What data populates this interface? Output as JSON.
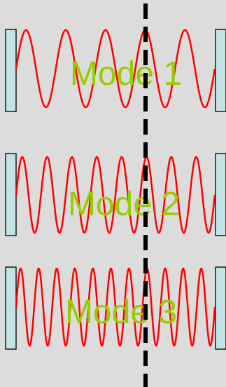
{
  "colors": {
    "background": "#dcdcdc",
    "mirror_fill": "#c3e2e6",
    "mirror_stroke": "#1a1a1a",
    "wave": "#ff0000",
    "label": "#99cc00",
    "centerline": "#000000"
  },
  "modes": [
    {
      "label": "Mode 1",
      "cycles": 5
    },
    {
      "label": "Mode 2",
      "cycles": 8
    },
    {
      "label": "Mode 3",
      "cycles": 11
    }
  ]
}
